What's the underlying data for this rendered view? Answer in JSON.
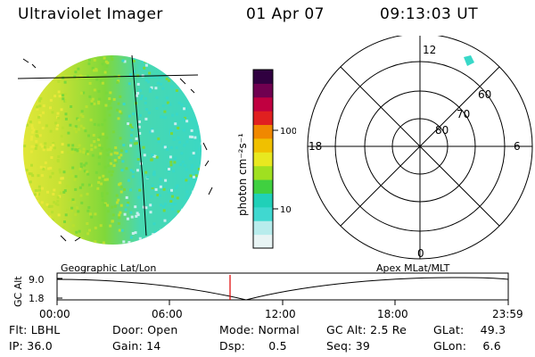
{
  "header": {
    "title": "Ultraviolet Imager",
    "date": "01 Apr 07",
    "time": "09:13:03 UT"
  },
  "colorbar": {
    "unit_label": "photon cm⁻²s⁻¹",
    "ticks": [
      "100",
      "10"
    ],
    "colors": [
      "#e8f4f4",
      "#b8ecec",
      "#40d8d0",
      "#20d0b8",
      "#40d040",
      "#a0e020",
      "#e8e820",
      "#f0c000",
      "#f08800",
      "#e02020",
      "#c00040",
      "#700050",
      "#300040"
    ]
  },
  "polar": {
    "mlt_labels": {
      "top": "12",
      "left": "18",
      "right": "6",
      "bottom": "0"
    },
    "lat_labels": [
      "60",
      "70",
      "80"
    ]
  },
  "timeline": {
    "left_label": "Geographic Lat/Lon",
    "right_label": "Apex MLat/MLT",
    "axis_title": "GC Alt",
    "y_ticks": [
      "9.0",
      "1.8"
    ],
    "x_ticks": [
      "00:00",
      "06:00",
      "12:00",
      "18:00",
      "23:59"
    ],
    "marker_color": "#e00000"
  },
  "info": {
    "row1": [
      {
        "label": "Flt:",
        "value": "LBHL"
      },
      {
        "label": "Door:",
        "value": "Open"
      },
      {
        "label": "Mode:",
        "value": "Normal"
      },
      {
        "label": "GC Alt:",
        "value": "2.5 Re"
      },
      {
        "label": "GLat:",
        "value": "49.3"
      }
    ],
    "row2": [
      {
        "label": "IP:",
        "value": "36.0"
      },
      {
        "label": "Gain:",
        "value": "14"
      },
      {
        "label": "Dsp:",
        "value": "0.5"
      },
      {
        "label": "Seq:",
        "value": "39"
      },
      {
        "label": "GLon:",
        "value": "6.6"
      }
    ]
  },
  "globe_colors": {
    "yellow": "#e8e83a",
    "green": "#7ad83a",
    "lime": "#b8e030",
    "cyan": "#38d8c8",
    "pale": "#c8eeee"
  }
}
